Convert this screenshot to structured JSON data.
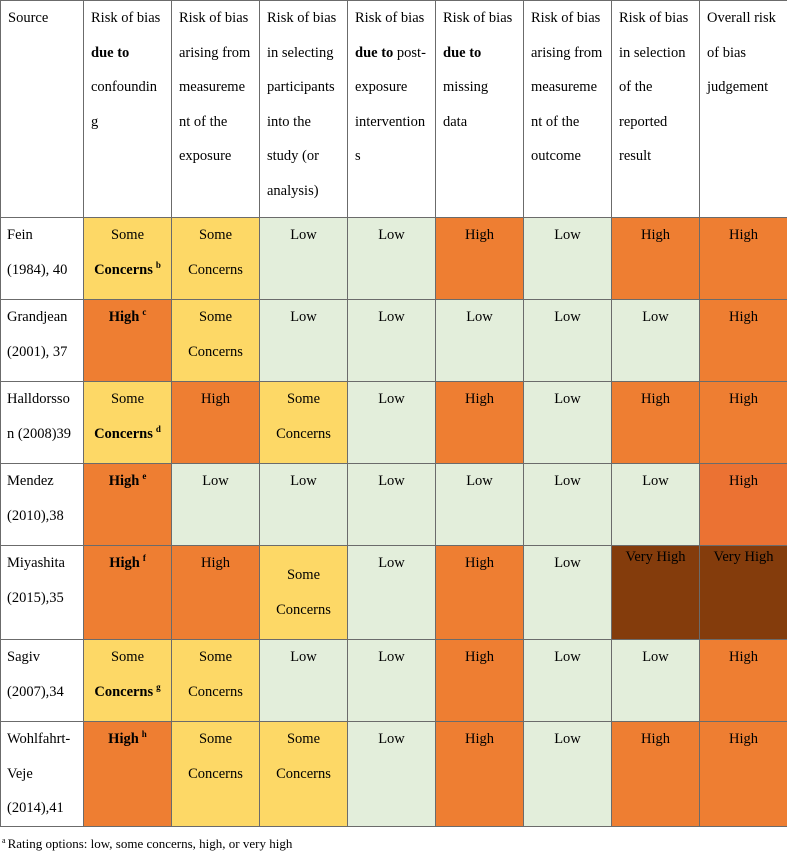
{
  "headers": [
    [
      "Source"
    ],
    [
      "Risk of bias",
      "**due to**",
      "confoundin",
      "g"
    ],
    [
      "Risk of bias",
      "arising from",
      "measureme",
      "nt of the",
      "exposure"
    ],
    [
      "Risk of bias",
      "in selecting",
      "participants",
      "into the",
      "study (or",
      "analysis)"
    ],
    [
      "Risk of bias",
      "**due to** post-",
      "exposure",
      "intervention",
      "s"
    ],
    [
      "Risk of bias",
      "**due to**",
      "missing",
      "data"
    ],
    [
      "Risk of bias",
      "arising from",
      "measureme",
      "nt of the",
      "outcome"
    ],
    [
      "Risk of bias",
      "in selection",
      "of the",
      "reported",
      "result"
    ],
    [
      "Overall risk",
      "of bias",
      "judgement"
    ]
  ],
  "rows": [
    {
      "source": [
        "Fein",
        "(1984), 40"
      ],
      "cells": [
        {
          "lines": [
            "Some",
            "Concerns"
          ],
          "level": "some",
          "bold": true,
          "sup": "b"
        },
        {
          "lines": [
            "Some",
            "Concerns"
          ],
          "level": "some"
        },
        {
          "lines": [
            "Low"
          ],
          "level": "low"
        },
        {
          "lines": [
            "Low"
          ],
          "level": "low"
        },
        {
          "lines": [
            "High"
          ],
          "level": "high"
        },
        {
          "lines": [
            "Low"
          ],
          "level": "low"
        },
        {
          "lines": [
            "High"
          ],
          "level": "high"
        },
        {
          "lines": [
            "High"
          ],
          "level": "high"
        }
      ]
    },
    {
      "source": [
        "Grandjean",
        "(2001), 37"
      ],
      "cells": [
        {
          "lines": [
            "High"
          ],
          "level": "high",
          "bold": true,
          "sup": "c"
        },
        {
          "lines": [
            "Some",
            "Concerns"
          ],
          "level": "some"
        },
        {
          "lines": [
            "Low"
          ],
          "level": "low"
        },
        {
          "lines": [
            "Low"
          ],
          "level": "low"
        },
        {
          "lines": [
            "Low"
          ],
          "level": "low"
        },
        {
          "lines": [
            "Low"
          ],
          "level": "low"
        },
        {
          "lines": [
            "Low"
          ],
          "level": "low"
        },
        {
          "lines": [
            "High"
          ],
          "level": "high"
        }
      ]
    },
    {
      "source": [
        "Halldorsso",
        "n (2008)39"
      ],
      "cells": [
        {
          "lines": [
            "Some",
            "Concerns"
          ],
          "level": "some",
          "bold": true,
          "sup": "d"
        },
        {
          "lines": [
            "High"
          ],
          "level": "high"
        },
        {
          "lines": [
            "Some",
            "Concerns"
          ],
          "level": "some"
        },
        {
          "lines": [
            "Low"
          ],
          "level": "low"
        },
        {
          "lines": [
            "High"
          ],
          "level": "high"
        },
        {
          "lines": [
            "Low"
          ],
          "level": "low"
        },
        {
          "lines": [
            "High"
          ],
          "level": "high"
        },
        {
          "lines": [
            "High"
          ],
          "level": "high"
        }
      ]
    },
    {
      "source": [
        "Mendez",
        "(2010),38"
      ],
      "cells": [
        {
          "lines": [
            "High"
          ],
          "level": "high",
          "bold": true,
          "sup": "e"
        },
        {
          "lines": [
            "Low"
          ],
          "level": "low"
        },
        {
          "lines": [
            "Low"
          ],
          "level": "low"
        },
        {
          "lines": [
            "Low"
          ],
          "level": "low"
        },
        {
          "lines": [
            "Low"
          ],
          "level": "low"
        },
        {
          "lines": [
            "Low"
          ],
          "level": "low"
        },
        {
          "lines": [
            "Low"
          ],
          "level": "low"
        },
        {
          "lines": [
            "High"
          ],
          "level": "high2"
        }
      ]
    },
    {
      "source": [
        "Miyashita",
        "(2015),35"
      ],
      "cells": [
        {
          "lines": [
            "High"
          ],
          "level": "high",
          "bold": true,
          "sup": "f"
        },
        {
          "lines": [
            "High"
          ],
          "level": "high"
        },
        {
          "lines": [
            "Some",
            "Concerns"
          ],
          "level": "some",
          "offset": true
        },
        {
          "lines": [
            "Low"
          ],
          "level": "low"
        },
        {
          "lines": [
            "High"
          ],
          "level": "high"
        },
        {
          "lines": [
            "Low"
          ],
          "level": "low"
        },
        {
          "lines": [
            "Very High"
          ],
          "level": "vhigh"
        },
        {
          "lines": [
            "Very High"
          ],
          "level": "vhigh"
        }
      ]
    },
    {
      "source": [
        "Sagiv",
        "(2007),34"
      ],
      "cells": [
        {
          "lines": [
            "Some",
            "Concerns"
          ],
          "level": "some",
          "bold": true,
          "sup": "g"
        },
        {
          "lines": [
            "Some",
            "Concerns"
          ],
          "level": "some"
        },
        {
          "lines": [
            "Low"
          ],
          "level": "low"
        },
        {
          "lines": [
            "Low"
          ],
          "level": "low"
        },
        {
          "lines": [
            "High"
          ],
          "level": "high"
        },
        {
          "lines": [
            "Low"
          ],
          "level": "low"
        },
        {
          "lines": [
            "Low"
          ],
          "level": "low"
        },
        {
          "lines": [
            "High"
          ],
          "level": "high"
        }
      ]
    },
    {
      "source": [
        "Wohlfahrt-",
        "Veje",
        "(2014),41"
      ],
      "cells": [
        {
          "lines": [
            "High"
          ],
          "level": "high",
          "bold": true,
          "sup": "h"
        },
        {
          "lines": [
            "Some",
            "Concerns"
          ],
          "level": "some"
        },
        {
          "lines": [
            "Some",
            "Concerns"
          ],
          "level": "some"
        },
        {
          "lines": [
            "Low"
          ],
          "level": "low"
        },
        {
          "lines": [
            "High"
          ],
          "level": "high"
        },
        {
          "lines": [
            "Low"
          ],
          "level": "low"
        },
        {
          "lines": [
            "High"
          ],
          "level": "high"
        },
        {
          "lines": [
            "High"
          ],
          "level": "high"
        }
      ]
    }
  ],
  "footnote": {
    "sup": "a",
    "text": "Rating options: low, some concerns, high, or very high"
  },
  "colors": {
    "low": "#e3eedb",
    "some": "#fdd866",
    "high": "#ee7e32",
    "very_high": "#843c0c"
  }
}
